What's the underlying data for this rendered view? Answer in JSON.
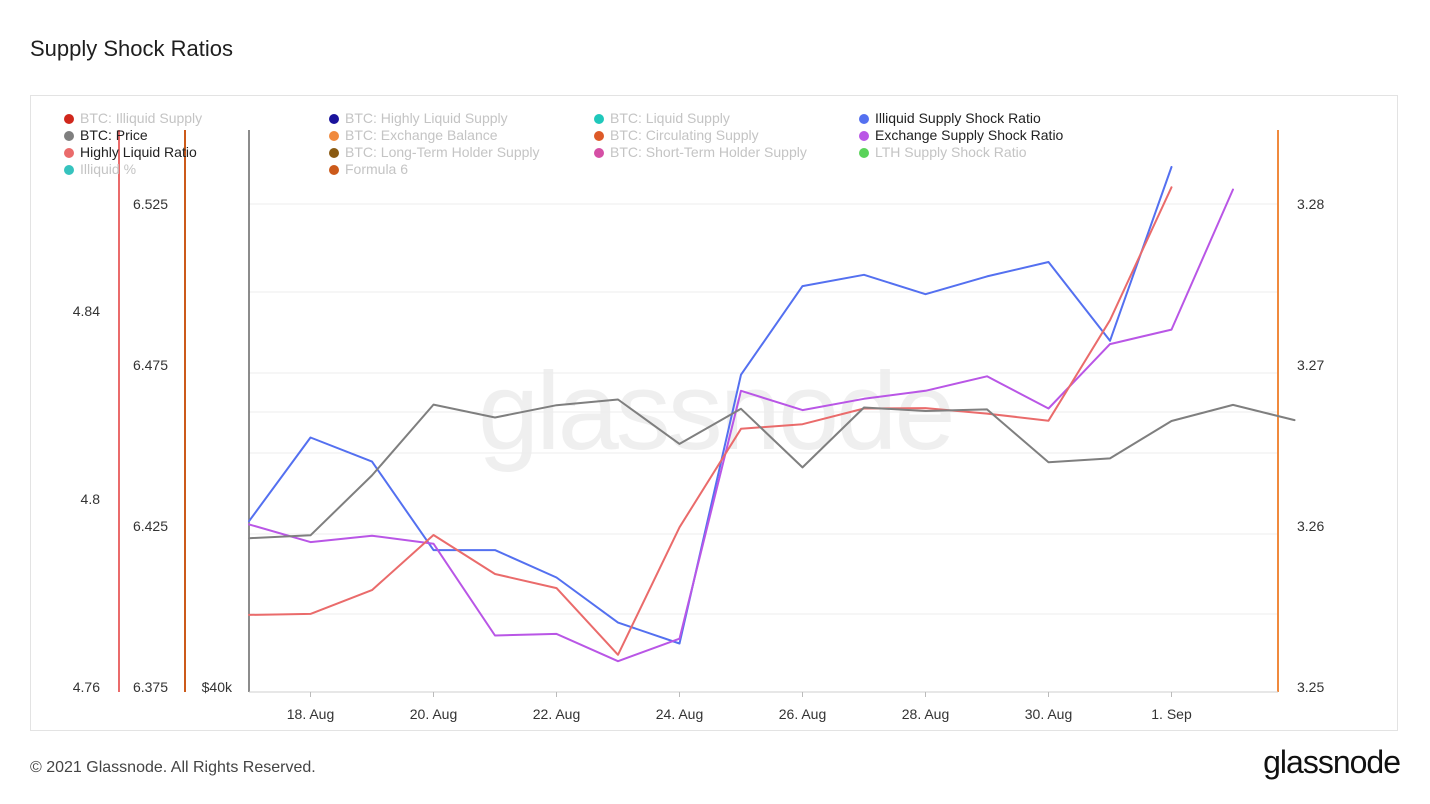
{
  "title": "Supply Shock Ratios",
  "footer": {
    "copyright": "© 2021 Glassnode. All Rights Reserved.",
    "brand": "glassnode"
  },
  "watermark": "glassnode",
  "legend": [
    {
      "label": "BTC: Illiquid Supply",
      "color": "#d0271c",
      "active": false
    },
    {
      "label": "BTC: Price",
      "color": "#7f7f7f",
      "active": true
    },
    {
      "label": "Highly Liquid Ratio",
      "color": "#ea6b6b",
      "active": true
    },
    {
      "label": "Illiquid %",
      "color": "#36c3be",
      "active": false
    },
    {
      "label": "BTC: Highly Liquid Supply",
      "color": "#1a139c",
      "active": false
    },
    {
      "label": "BTC: Exchange Balance",
      "color": "#f08a3e",
      "active": false
    },
    {
      "label": "BTC: Long-Term Holder Supply",
      "color": "#8a5a12",
      "active": false
    },
    {
      "label": "Formula 6",
      "color": "#cc5a1a",
      "active": false
    },
    {
      "label": "BTC: Liquid Supply",
      "color": "#1fc8bb",
      "active": false
    },
    {
      "label": "BTC: Circulating Supply",
      "color": "#dd5a28",
      "active": false
    },
    {
      "label": "BTC: Short-Term Holder Supply",
      "color": "#d54fa5",
      "active": false
    },
    {
      "label": "Illiquid Supply Shock Ratio",
      "color": "#5470f0",
      "active": true
    },
    {
      "label": "Exchange Supply Shock Ratio",
      "color": "#b956e6",
      "active": true
    },
    {
      "label": "LTH Supply Shock Ratio",
      "color": "#5ad35a",
      "active": false
    }
  ],
  "chart_data": {
    "type": "line",
    "x": [
      "17 Aug",
      "18 Aug",
      "19 Aug",
      "20 Aug",
      "21 Aug",
      "22 Aug",
      "23 Aug",
      "24 Aug",
      "25 Aug",
      "26 Aug",
      "27 Aug",
      "28 Aug",
      "29 Aug",
      "30 Aug",
      "31 Aug",
      "1 Sep",
      "2 Sep",
      "3 Sep"
    ],
    "x_ticks": [
      "18. Aug",
      "20. Aug",
      "22. Aug",
      "24. Aug",
      "26. Aug",
      "28. Aug",
      "30. Aug",
      "1. Sep"
    ],
    "axes": {
      "left_outer": {
        "ticks": [
          "4.84",
          "4.8",
          "4.76"
        ],
        "range": [
          4.76,
          4.865
        ]
      },
      "left_inner": {
        "ticks": [
          "6.525",
          "6.475",
          "6.425",
          "6.375"
        ],
        "range": [
          6.375,
          6.525
        ]
      },
      "price": {
        "ticks": [
          "$40k"
        ]
      },
      "right": {
        "ticks": [
          "3.28",
          "3.27",
          "3.26",
          "3.25"
        ],
        "range": [
          3.25,
          3.28
        ]
      }
    },
    "series": [
      {
        "name": "Illiquid Supply Shock Ratio",
        "color": "#5470f0",
        "axis": "right",
        "values": [
          3.2603,
          3.2655,
          3.264,
          3.2585,
          3.2585,
          3.2568,
          3.254,
          3.2527,
          3.2694,
          3.2749,
          3.2756,
          3.2744,
          3.2755,
          3.2764,
          3.2715,
          3.2823,
          null,
          null
        ]
      },
      {
        "name": "Exchange Supply Shock Ratio",
        "color": "#b956e6",
        "axis": "right",
        "values": [
          3.2601,
          3.259,
          3.2594,
          3.2589,
          3.2532,
          3.2533,
          3.2516,
          3.253,
          3.2684,
          3.2672,
          3.2679,
          3.2684,
          3.2693,
          3.2673,
          3.2713,
          3.2722,
          3.2809,
          null
        ]
      },
      {
        "name": "Highly Liquid Ratio",
        "color": "#ea6b6b",
        "axis": "left_inner",
        "values": [
          6.3974,
          6.3977,
          6.4051,
          6.4222,
          6.4101,
          6.4057,
          6.385,
          6.4246,
          6.4552,
          6.4566,
          6.4615,
          6.4616,
          6.4599,
          6.4577,
          6.4889,
          6.5302,
          null,
          null
        ]
      },
      {
        "name": "BTC: Price",
        "color": "#7f7f7f",
        "axis": "left_inner",
        "values": [
          6.4212,
          6.4221,
          6.4407,
          6.4627,
          6.4587,
          6.4625,
          6.4643,
          6.4505,
          6.4614,
          6.4432,
          6.4618,
          6.4607,
          6.4612,
          6.4448,
          6.446,
          6.4576,
          6.4626,
          6.4579
        ]
      }
    ]
  }
}
